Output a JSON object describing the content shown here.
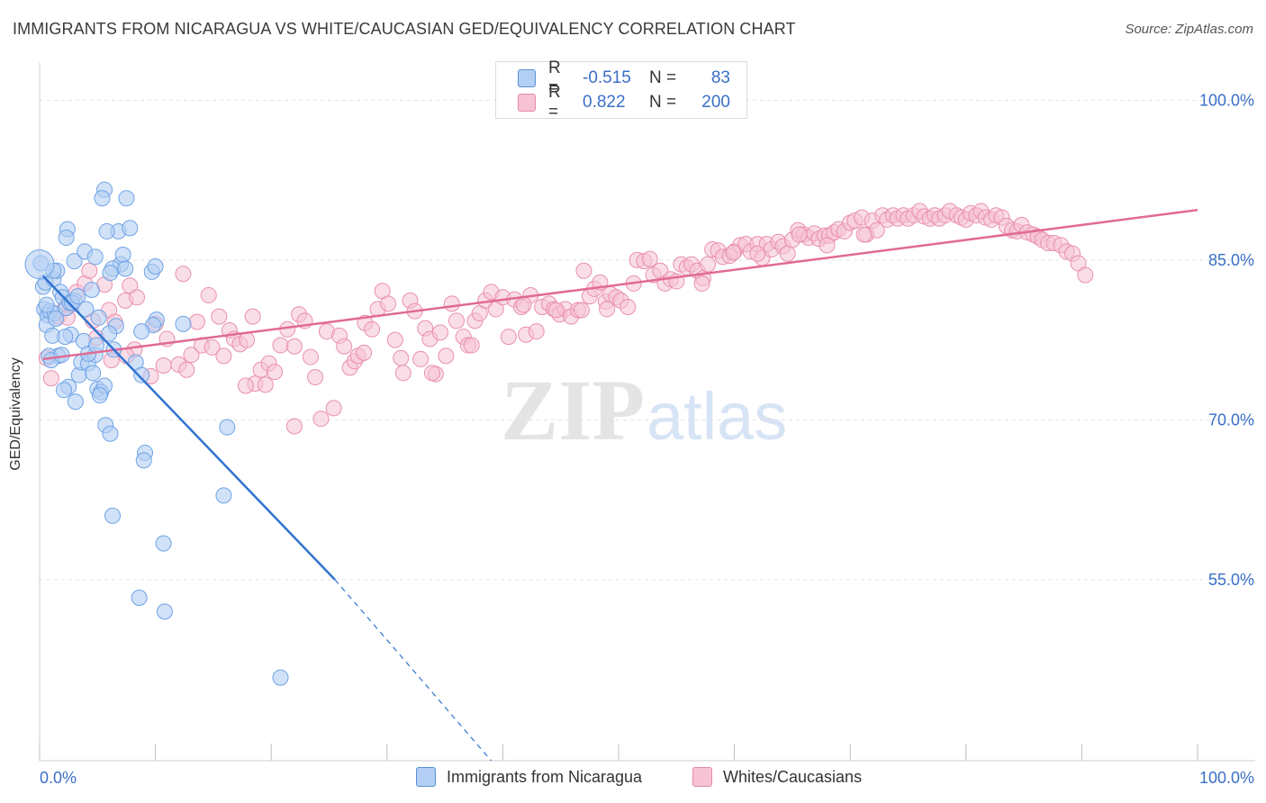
{
  "header": {
    "title": "IMMIGRANTS FROM NICARAGUA VS WHITE/CAUCASIAN GED/EQUIVALENCY CORRELATION CHART",
    "source": "Source: ZipAtlas.com"
  },
  "watermark": {
    "zip": "ZIP",
    "atlas": "atlas"
  },
  "legend": {
    "rows": [
      {
        "r_label": "R =",
        "r_value": "-0.515",
        "n_label": "N =",
        "n_value": "83",
        "color": "#a9c8f0",
        "border": "#5b8fd6"
      },
      {
        "r_label": "R =",
        "r_value": "0.822",
        "n_label": "N =",
        "n_value": "200",
        "color": "#f7bfd2",
        "border": "#e58aa9"
      }
    ]
  },
  "chart_data": {
    "type": "scatter",
    "title": "IMMIGRANTS FROM NICARAGUA VS WHITE/CAUCASIAN GED/EQUIVALENCY CORRELATION CHART",
    "ylabel": "GED/Equivalency",
    "xlabel": "",
    "xlim": [
      0,
      100
    ],
    "ylim": [
      38,
      103.5
    ],
    "x_tick_labels": [
      "0.0%",
      "100.0%"
    ],
    "y_tick_labels": [
      "100.0%",
      "85.0%",
      "70.0%",
      "55.0%"
    ],
    "y_tick_values": [
      100,
      85,
      70,
      55
    ],
    "grid": true,
    "series": [
      {
        "name": "Immigrants from Nicaragua",
        "color": "#6fa3e6",
        "fill": "#b3cff3",
        "line_color": "#2f73d0",
        "trend": {
          "x0": 0.3,
          "y0": 83.5,
          "x1": 25.5,
          "y1": 55.0,
          "dash_to_x": 39.0,
          "dash_to_y": 38.0
        },
        "points": [
          [
            0.1,
            84.7
          ],
          [
            0.3,
            82.5
          ],
          [
            0.5,
            82.9
          ],
          [
            0.4,
            80.4
          ],
          [
            0.7,
            79.8
          ],
          [
            0.9,
            80.2
          ],
          [
            0.6,
            78.9
          ],
          [
            1.2,
            83.2
          ],
          [
            1.5,
            84.0
          ],
          [
            1.8,
            82.0
          ],
          [
            2.0,
            81.5
          ],
          [
            1.3,
            80.0
          ],
          [
            1.1,
            77.9
          ],
          [
            1.6,
            76.0
          ],
          [
            0.8,
            76.0
          ],
          [
            2.3,
            80.5
          ],
          [
            2.6,
            81.0
          ],
          [
            3.0,
            81.2
          ],
          [
            2.7,
            78.0
          ],
          [
            2.2,
            77.8
          ],
          [
            2.5,
            73.1
          ],
          [
            3.4,
            74.2
          ],
          [
            3.1,
            71.7
          ],
          [
            3.6,
            75.4
          ],
          [
            3.8,
            77.4
          ],
          [
            4.2,
            75.3
          ],
          [
            4.0,
            80.4
          ],
          [
            4.5,
            82.2
          ],
          [
            4.6,
            74.4
          ],
          [
            4.8,
            76.1
          ],
          [
            5.0,
            72.9
          ],
          [
            5.3,
            72.6
          ],
          [
            5.6,
            73.2
          ],
          [
            5.7,
            69.5
          ],
          [
            6.1,
            68.7
          ],
          [
            6.4,
            76.6
          ],
          [
            6.6,
            78.8
          ],
          [
            6.3,
            61.0
          ],
          [
            7.0,
            84.6
          ],
          [
            7.2,
            85.5
          ],
          [
            6.8,
            87.7
          ],
          [
            7.5,
            90.8
          ],
          [
            7.8,
            88.0
          ],
          [
            5.8,
            87.7
          ],
          [
            5.6,
            91.6
          ],
          [
            5.4,
            90.8
          ],
          [
            2.4,
            87.9
          ],
          [
            2.3,
            87.1
          ],
          [
            3.0,
            84.9
          ],
          [
            3.9,
            85.8
          ],
          [
            4.8,
            85.3
          ],
          [
            6.3,
            84.2
          ],
          [
            6.1,
            83.8
          ],
          [
            8.3,
            75.4
          ],
          [
            8.8,
            74.2
          ],
          [
            9.1,
            66.9
          ],
          [
            9.0,
            66.2
          ],
          [
            9.7,
            83.9
          ],
          [
            10.0,
            84.4
          ],
          [
            10.1,
            79.4
          ],
          [
            9.8,
            78.9
          ],
          [
            10.7,
            58.4
          ],
          [
            8.6,
            53.3
          ],
          [
            10.8,
            52.0
          ],
          [
            12.4,
            79.0
          ],
          [
            16.2,
            69.3
          ],
          [
            15.9,
            62.9
          ],
          [
            20.8,
            45.8
          ],
          [
            5.2,
            72.3
          ],
          [
            4.2,
            76.2
          ],
          [
            2.8,
            81.0
          ],
          [
            3.3,
            81.6
          ],
          [
            1.0,
            75.6
          ],
          [
            1.9,
            76.1
          ],
          [
            0.6,
            80.8
          ],
          [
            1.2,
            84.0
          ],
          [
            7.4,
            84.2
          ],
          [
            8.8,
            78.3
          ],
          [
            6.0,
            78.1
          ],
          [
            5.1,
            79.6
          ],
          [
            2.1,
            72.8
          ],
          [
            1.4,
            79.5
          ],
          [
            4.9,
            77.0
          ]
        ],
        "big_point": [
          0.0,
          84.6
        ]
      },
      {
        "name": "Whites/Caucasians",
        "color": "#e98fb0",
        "fill": "#f6c2d4",
        "line_color": "#e16a93",
        "trend": {
          "x0": 0.3,
          "y0": 75.7,
          "x1": 100,
          "y1": 89.7
        },
        "points": [
          [
            0.6,
            75.8
          ],
          [
            1.0,
            73.9
          ],
          [
            1.6,
            79.7
          ],
          [
            2.2,
            80.5
          ],
          [
            2.7,
            80.8
          ],
          [
            3.2,
            82.0
          ],
          [
            3.9,
            82.8
          ],
          [
            4.3,
            84.0
          ],
          [
            4.6,
            79.3
          ],
          [
            4.9,
            77.7
          ],
          [
            5.6,
            82.7
          ],
          [
            6.0,
            80.3
          ],
          [
            6.5,
            79.2
          ],
          [
            7.4,
            81.2
          ],
          [
            7.8,
            82.6
          ],
          [
            8.4,
            81.5
          ],
          [
            8.2,
            76.6
          ],
          [
            9.6,
            74.1
          ],
          [
            10.0,
            79.0
          ],
          [
            10.7,
            75.1
          ],
          [
            11.0,
            77.6
          ],
          [
            12.0,
            75.2
          ],
          [
            12.4,
            83.7
          ],
          [
            12.7,
            74.7
          ],
          [
            13.1,
            76.1
          ],
          [
            13.6,
            79.2
          ],
          [
            14.0,
            77.0
          ],
          [
            14.6,
            81.7
          ],
          [
            14.9,
            76.8
          ],
          [
            15.5,
            79.7
          ],
          [
            15.9,
            76.0
          ],
          [
            16.4,
            78.4
          ],
          [
            16.8,
            77.6
          ],
          [
            17.3,
            77.1
          ],
          [
            17.9,
            77.5
          ],
          [
            18.4,
            79.7
          ],
          [
            18.6,
            73.4
          ],
          [
            19.1,
            74.7
          ],
          [
            19.5,
            73.3
          ],
          [
            19.8,
            75.3
          ],
          [
            20.3,
            74.5
          ],
          [
            20.8,
            77.0
          ],
          [
            21.4,
            78.5
          ],
          [
            22.0,
            69.4
          ],
          [
            22.4,
            79.9
          ],
          [
            22.9,
            79.3
          ],
          [
            23.4,
            75.9
          ],
          [
            23.8,
            74.0
          ],
          [
            24.3,
            70.1
          ],
          [
            24.8,
            78.3
          ],
          [
            25.4,
            71.1
          ],
          [
            25.9,
            77.9
          ],
          [
            26.3,
            76.9
          ],
          [
            26.8,
            74.9
          ],
          [
            27.2,
            75.5
          ],
          [
            27.5,
            76.0
          ],
          [
            28.1,
            79.1
          ],
          [
            28.7,
            78.5
          ],
          [
            29.2,
            80.4
          ],
          [
            29.6,
            82.1
          ],
          [
            30.1,
            80.9
          ],
          [
            30.7,
            77.5
          ],
          [
            31.2,
            75.8
          ],
          [
            31.4,
            74.4
          ],
          [
            32.0,
            81.2
          ],
          [
            32.4,
            80.2
          ],
          [
            32.9,
            75.7
          ],
          [
            33.3,
            78.6
          ],
          [
            33.7,
            77.6
          ],
          [
            34.2,
            74.3
          ],
          [
            34.6,
            78.2
          ],
          [
            35.1,
            76.0
          ],
          [
            35.6,
            80.9
          ],
          [
            36.0,
            79.3
          ],
          [
            36.6,
            77.8
          ],
          [
            37.0,
            77.0
          ],
          [
            37.6,
            79.3
          ],
          [
            38.0,
            80.0
          ],
          [
            38.5,
            81.2
          ],
          [
            39.0,
            82.0
          ],
          [
            39.4,
            80.4
          ],
          [
            40.0,
            81.5
          ],
          [
            40.5,
            77.8
          ],
          [
            41.0,
            81.3
          ],
          [
            41.6,
            80.6
          ],
          [
            42.0,
            78.0
          ],
          [
            42.4,
            81.7
          ],
          [
            42.9,
            78.3
          ],
          [
            43.4,
            80.6
          ],
          [
            44.0,
            80.9
          ],
          [
            44.4,
            80.4
          ],
          [
            44.9,
            79.9
          ],
          [
            45.4,
            80.4
          ],
          [
            45.9,
            79.7
          ],
          [
            46.5,
            80.3
          ],
          [
            47.0,
            84.0
          ],
          [
            47.5,
            81.6
          ],
          [
            47.9,
            82.3
          ],
          [
            48.4,
            82.9
          ],
          [
            48.9,
            81.1
          ],
          [
            49.3,
            81.8
          ],
          [
            49.8,
            81.5
          ],
          [
            50.2,
            81.2
          ],
          [
            50.8,
            80.6
          ],
          [
            51.3,
            82.8
          ],
          [
            51.6,
            85.0
          ],
          [
            52.2,
            84.9
          ],
          [
            52.7,
            85.1
          ],
          [
            53.0,
            83.6
          ],
          [
            53.6,
            84.0
          ],
          [
            54.0,
            82.8
          ],
          [
            54.5,
            83.2
          ],
          [
            55.0,
            83.0
          ],
          [
            55.4,
            84.6
          ],
          [
            55.9,
            84.3
          ],
          [
            56.3,
            84.6
          ],
          [
            56.8,
            84.0
          ],
          [
            57.3,
            83.3
          ],
          [
            57.7,
            84.6
          ],
          [
            58.1,
            86.0
          ],
          [
            58.6,
            85.9
          ],
          [
            59.0,
            85.3
          ],
          [
            59.6,
            85.4
          ],
          [
            60.0,
            85.8
          ],
          [
            60.5,
            86.4
          ],
          [
            61.0,
            86.5
          ],
          [
            61.4,
            85.8
          ],
          [
            62.0,
            86.5
          ],
          [
            62.4,
            85.2
          ],
          [
            62.8,
            86.5
          ],
          [
            63.2,
            86.0
          ],
          [
            63.8,
            86.7
          ],
          [
            64.2,
            86.3
          ],
          [
            64.6,
            85.6
          ],
          [
            65.0,
            86.9
          ],
          [
            65.5,
            87.8
          ],
          [
            66.0,
            87.4
          ],
          [
            66.4,
            87.1
          ],
          [
            66.9,
            87.5
          ],
          [
            67.3,
            87.0
          ],
          [
            67.8,
            87.3
          ],
          [
            68.2,
            87.3
          ],
          [
            68.6,
            87.6
          ],
          [
            69.0,
            87.9
          ],
          [
            69.5,
            87.7
          ],
          [
            70.0,
            88.5
          ],
          [
            70.4,
            88.7
          ],
          [
            71.0,
            89.0
          ],
          [
            71.4,
            87.4
          ],
          [
            71.9,
            88.7
          ],
          [
            72.3,
            87.8
          ],
          [
            72.8,
            89.2
          ],
          [
            73.2,
            88.8
          ],
          [
            73.7,
            89.2
          ],
          [
            74.1,
            88.9
          ],
          [
            74.6,
            89.2
          ],
          [
            75.0,
            88.9
          ],
          [
            75.5,
            89.2
          ],
          [
            76.0,
            89.6
          ],
          [
            76.4,
            89.1
          ],
          [
            76.9,
            88.9
          ],
          [
            77.3,
            89.2
          ],
          [
            77.7,
            88.9
          ],
          [
            78.2,
            89.2
          ],
          [
            78.6,
            89.6
          ],
          [
            79.2,
            89.2
          ],
          [
            79.6,
            89.0
          ],
          [
            80.0,
            88.8
          ],
          [
            80.4,
            89.4
          ],
          [
            80.9,
            89.2
          ],
          [
            81.3,
            89.6
          ],
          [
            81.7,
            89.0
          ],
          [
            82.2,
            88.8
          ],
          [
            82.6,
            89.2
          ],
          [
            83.1,
            89.0
          ],
          [
            83.5,
            88.2
          ],
          [
            84.0,
            87.8
          ],
          [
            84.4,
            87.7
          ],
          [
            84.8,
            88.3
          ],
          [
            85.3,
            87.6
          ],
          [
            85.8,
            87.4
          ],
          [
            86.2,
            87.2
          ],
          [
            86.6,
            86.9
          ],
          [
            87.1,
            86.6
          ],
          [
            87.6,
            86.6
          ],
          [
            88.2,
            86.4
          ],
          [
            88.7,
            85.8
          ],
          [
            89.2,
            85.6
          ],
          [
            89.7,
            84.7
          ],
          [
            90.3,
            83.6
          ],
          [
            71.2,
            87.4
          ],
          [
            68.0,
            86.4
          ],
          [
            65.6,
            87.4
          ],
          [
            62.0,
            85.6
          ],
          [
            59.9,
            85.7
          ],
          [
            57.2,
            82.8
          ],
          [
            49.0,
            80.4
          ],
          [
            46.8,
            80.3
          ],
          [
            44.6,
            80.3
          ],
          [
            41.8,
            80.8
          ],
          [
            37.3,
            77.0
          ],
          [
            33.9,
            74.4
          ],
          [
            28.0,
            76.3
          ],
          [
            22.0,
            76.9
          ],
          [
            17.8,
            73.2
          ],
          [
            7.5,
            76.0
          ],
          [
            6.2,
            75.6
          ],
          [
            2.4,
            79.6
          ]
        ]
      }
    ]
  },
  "bottom_legend": {
    "items": [
      {
        "label": "Immigrants from Nicaragua",
        "color": "#b3cff3",
        "border": "#5b8fd6"
      },
      {
        "label": "Whites/Caucasians",
        "color": "#f6c2d4",
        "border": "#e58aa9"
      }
    ]
  }
}
